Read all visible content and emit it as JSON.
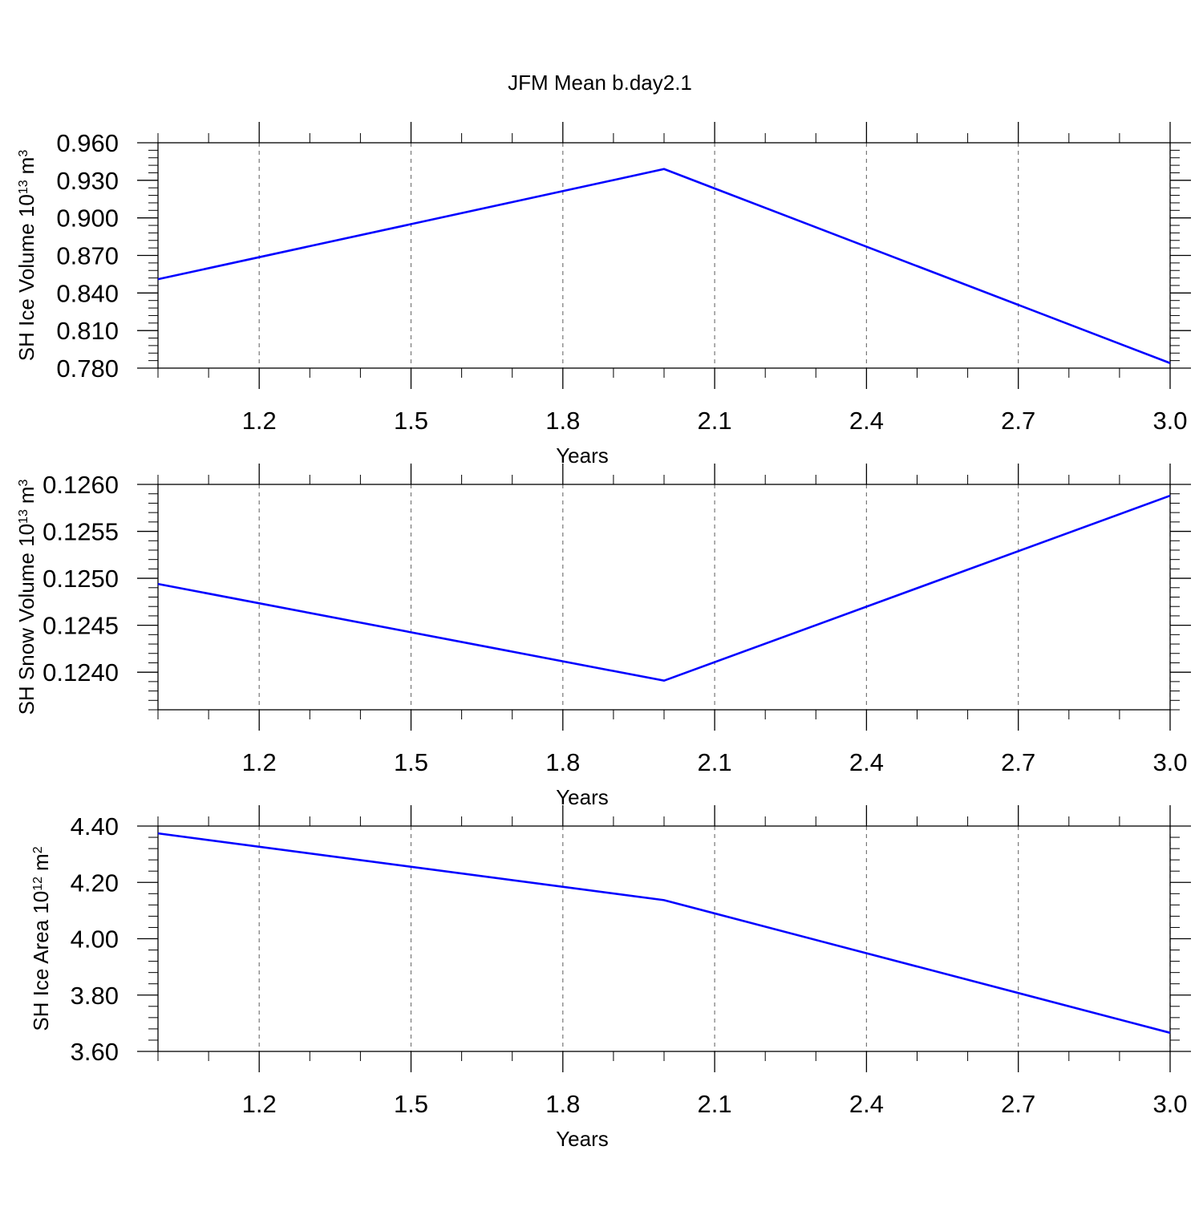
{
  "chart_data": [
    {
      "type": "line",
      "title": "JFM Mean b.day2.1",
      "xlabel": "Years",
      "ylabel": [
        "SH Ice Volume 10",
        "13",
        "m",
        "3"
      ],
      "x": [
        1,
        2,
        3
      ],
      "series": [
        {
          "color": "#0000ff",
          "values": [
            0.851,
            0.939,
            0.784
          ]
        }
      ],
      "xlim": [
        1,
        3
      ],
      "xticks": [
        1.2,
        1.5,
        1.8,
        2.1,
        2.4,
        2.7,
        {
          "value": 3,
          "label": "3.0"
        }
      ],
      "ylim": [
        0.78,
        0.96
      ],
      "yticks": [
        {
          "value": 0.78,
          "label": "0.780"
        },
        {
          "value": 0.81,
          "label": "0.810"
        },
        {
          "value": 0.84,
          "label": "0.840"
        },
        {
          "value": 0.87,
          "label": "0.870"
        },
        {
          "value": 0.9,
          "label": "0.900"
        },
        {
          "value": 0.93,
          "label": "0.930"
        },
        {
          "value": 0.96,
          "label": "0.960"
        }
      ],
      "grid": "x-dashed"
    },
    {
      "type": "line",
      "xlabel": "Years",
      "ylabel": [
        "SH Snow Volume 10",
        "13",
        "m",
        "3"
      ],
      "x": [
        1,
        2,
        3
      ],
      "series": [
        {
          "color": "#0000ff",
          "values": [
            0.12494,
            0.12391,
            0.12588
          ]
        }
      ],
      "xlim": [
        1,
        3
      ],
      "xticks": [
        1.2,
        1.5,
        1.8,
        2.1,
        2.4,
        2.7,
        {
          "value": 3,
          "label": "3.0"
        }
      ],
      "ylim": [
        0.1236,
        0.126
      ],
      "yticks": [
        {
          "value": 0.124,
          "label": "0.1240"
        },
        0.1245,
        {
          "value": 0.125,
          "label": "0.1250"
        },
        0.1255,
        {
          "value": 0.126,
          "label": "0.1260"
        }
      ],
      "grid": "x-dashed"
    },
    {
      "type": "line",
      "xlabel": "Years",
      "ylabel": [
        "SH Ice Area 10",
        "12",
        "m",
        "2"
      ],
      "x": [
        1,
        2,
        3
      ],
      "series": [
        {
          "color": "#0000ff",
          "values": [
            4.374,
            4.137,
            3.666
          ]
        }
      ],
      "xlim": [
        1,
        3
      ],
      "xticks": [
        1.2,
        1.5,
        1.8,
        2.1,
        2.4,
        2.7,
        {
          "value": 3,
          "label": "3.0"
        }
      ],
      "ylim": [
        3.6,
        4.4
      ],
      "yticks": [
        {
          "value": 3.6,
          "label": "3.60"
        },
        {
          "value": 3.8,
          "label": "3.80"
        },
        {
          "value": 4,
          "label": "4.00"
        },
        {
          "value": 4.2,
          "label": "4.20"
        },
        {
          "value": 4.4,
          "label": "4.40"
        }
      ],
      "grid": "x-dashed"
    }
  ]
}
